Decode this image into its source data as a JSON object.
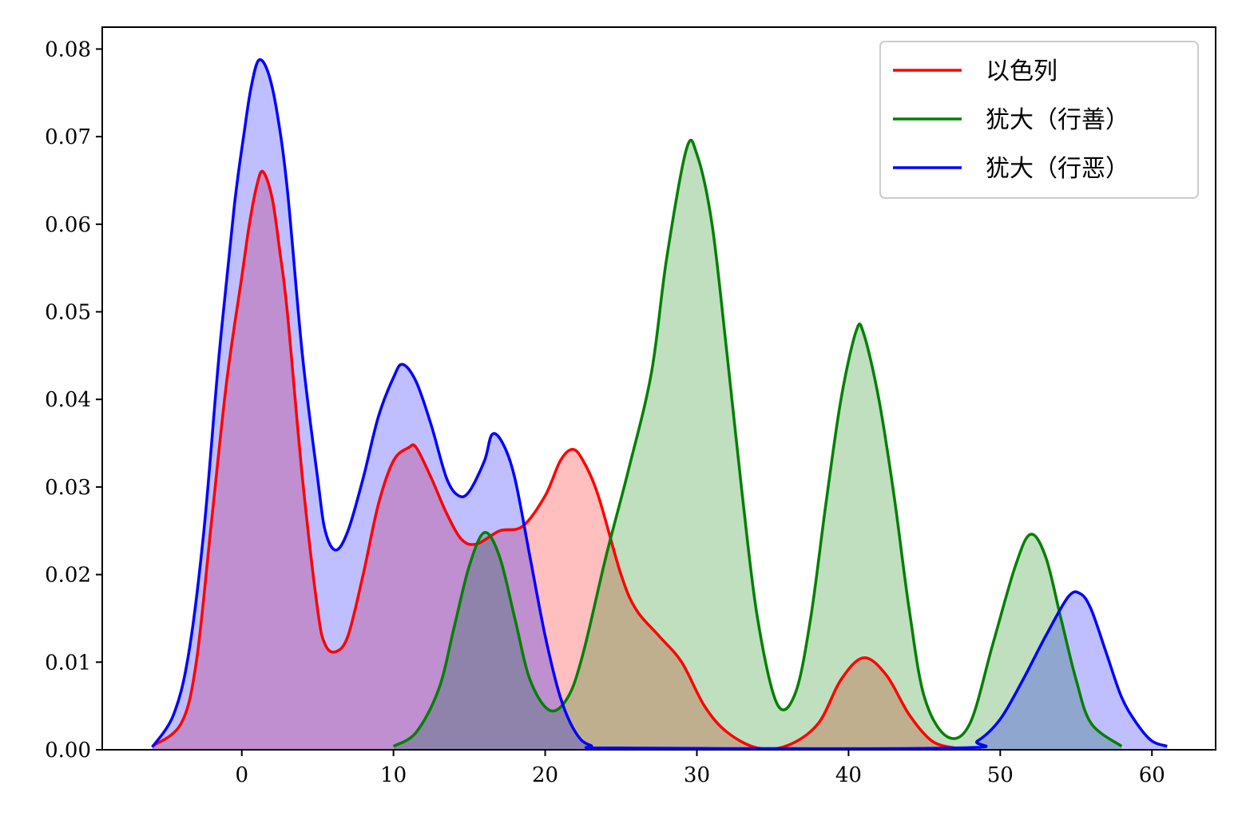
{
  "chart_data": {
    "type": "area",
    "title": "",
    "xlabel": "",
    "ylabel": "",
    "xlim": [
      -9.2,
      64.2
    ],
    "ylim": [
      0,
      0.0825
    ],
    "x_ticks": [
      0,
      10,
      20,
      30,
      40,
      50,
      60
    ],
    "y_ticks": [
      0.0,
      0.01,
      0.02,
      0.03,
      0.04,
      0.05,
      0.06,
      0.07,
      0.08
    ],
    "x_tick_labels": [
      "0",
      "10",
      "20",
      "30",
      "40",
      "50",
      "60"
    ],
    "y_tick_labels": [
      "0.00",
      "0.01",
      "0.02",
      "0.03",
      "0.04",
      "0.05",
      "0.06",
      "0.07",
      "0.08"
    ],
    "grid": false,
    "legend_position": "top-right",
    "series": [
      {
        "name": "以色列",
        "color": "#ff0000",
        "points": [
          [
            -5.9,
            0.0004
          ],
          [
            -4.0,
            0.003
          ],
          [
            -3.0,
            0.01
          ],
          [
            -2.0,
            0.026
          ],
          [
            -1.0,
            0.042
          ],
          [
            0.0,
            0.054
          ],
          [
            0.5,
            0.06
          ],
          [
            1.0,
            0.0645
          ],
          [
            1.4,
            0.066
          ],
          [
            2.0,
            0.063
          ],
          [
            2.5,
            0.057
          ],
          [
            3.0,
            0.05
          ],
          [
            4.0,
            0.031
          ],
          [
            5.0,
            0.016
          ],
          [
            5.5,
            0.012
          ],
          [
            6.2,
            0.0112
          ],
          [
            7.0,
            0.013
          ],
          [
            8.0,
            0.02
          ],
          [
            9.0,
            0.028
          ],
          [
            10.0,
            0.033
          ],
          [
            11.0,
            0.0345
          ],
          [
            11.5,
            0.0345
          ],
          [
            12.5,
            0.031
          ],
          [
            13.5,
            0.027
          ],
          [
            14.5,
            0.024
          ],
          [
            15.5,
            0.0235
          ],
          [
            17.0,
            0.025
          ],
          [
            18.5,
            0.0255
          ],
          [
            20.0,
            0.029
          ],
          [
            21.0,
            0.033
          ],
          [
            21.8,
            0.0343
          ],
          [
            22.5,
            0.033
          ],
          [
            23.5,
            0.029
          ],
          [
            25.0,
            0.02
          ],
          [
            26.0,
            0.016
          ],
          [
            27.5,
            0.013
          ],
          [
            29.0,
            0.01
          ],
          [
            30.5,
            0.005
          ],
          [
            32.0,
            0.002
          ],
          [
            34.0,
            0.0002
          ],
          [
            36.0,
            0.0005
          ],
          [
            38.0,
            0.003
          ],
          [
            39.5,
            0.008
          ],
          [
            41.0,
            0.0105
          ],
          [
            42.5,
            0.0085
          ],
          [
            44.0,
            0.004
          ],
          [
            45.5,
            0.001
          ],
          [
            47.0,
            0.0002
          ]
        ]
      },
      {
        "name": "犹大（行善）",
        "color": "#008000",
        "points": [
          [
            10.0,
            0.0004
          ],
          [
            11.5,
            0.002
          ],
          [
            13.0,
            0.007
          ],
          [
            14.0,
            0.014
          ],
          [
            15.0,
            0.021
          ],
          [
            16.0,
            0.0248
          ],
          [
            17.0,
            0.022
          ],
          [
            18.0,
            0.015
          ],
          [
            19.0,
            0.008
          ],
          [
            20.3,
            0.0045
          ],
          [
            21.5,
            0.006
          ],
          [
            22.5,
            0.011
          ],
          [
            24.0,
            0.022
          ],
          [
            25.5,
            0.032
          ],
          [
            27.0,
            0.043
          ],
          [
            28.0,
            0.056
          ],
          [
            29.3,
            0.0685
          ],
          [
            30.0,
            0.068
          ],
          [
            31.0,
            0.06
          ],
          [
            32.0,
            0.045
          ],
          [
            33.0,
            0.029
          ],
          [
            34.0,
            0.015
          ],
          [
            35.3,
            0.0052
          ],
          [
            36.5,
            0.0065
          ],
          [
            37.5,
            0.015
          ],
          [
            38.5,
            0.028
          ],
          [
            39.5,
            0.04
          ],
          [
            40.5,
            0.0478
          ],
          [
            41.0,
            0.0475
          ],
          [
            42.0,
            0.04
          ],
          [
            43.0,
            0.029
          ],
          [
            44.0,
            0.016
          ],
          [
            45.0,
            0.006
          ],
          [
            46.5,
            0.0015
          ],
          [
            48.0,
            0.003
          ],
          [
            49.5,
            0.012
          ],
          [
            51.0,
            0.021
          ],
          [
            52.0,
            0.0246
          ],
          [
            53.0,
            0.022
          ],
          [
            54.0,
            0.015
          ],
          [
            55.0,
            0.008
          ],
          [
            56.0,
            0.003
          ],
          [
            58.0,
            0.0004
          ]
        ]
      },
      {
        "name": "犹大（行恶）",
        "color": "#0000ff",
        "points": [
          [
            -5.9,
            0.0003
          ],
          [
            -4.5,
            0.004
          ],
          [
            -3.5,
            0.011
          ],
          [
            -2.5,
            0.025
          ],
          [
            -1.5,
            0.045
          ],
          [
            -0.5,
            0.062
          ],
          [
            0.2,
            0.071
          ],
          [
            0.6,
            0.0755
          ],
          [
            1.1,
            0.0787
          ],
          [
            1.7,
            0.0775
          ],
          [
            2.3,
            0.073
          ],
          [
            3.0,
            0.064
          ],
          [
            4.0,
            0.045
          ],
          [
            5.0,
            0.031
          ],
          [
            5.5,
            0.025
          ],
          [
            6.2,
            0.0228
          ],
          [
            7.0,
            0.025
          ],
          [
            8.0,
            0.031
          ],
          [
            9.0,
            0.038
          ],
          [
            10.0,
            0.0425
          ],
          [
            10.6,
            0.044
          ],
          [
            11.5,
            0.042
          ],
          [
            12.5,
            0.037
          ],
          [
            13.5,
            0.031
          ],
          [
            14.3,
            0.029
          ],
          [
            15.0,
            0.0295
          ],
          [
            16.0,
            0.033
          ],
          [
            16.5,
            0.036
          ],
          [
            17.2,
            0.035
          ],
          [
            18.0,
            0.031
          ],
          [
            19.0,
            0.022
          ],
          [
            20.0,
            0.013
          ],
          [
            21.0,
            0.006
          ],
          [
            22.0,
            0.002
          ],
          [
            23.0,
            0.0005
          ],
          [
            25.0,
            0.0002
          ],
          [
            47.0,
            0.0002
          ],
          [
            48.5,
            0.001
          ],
          [
            50.0,
            0.0035
          ],
          [
            51.5,
            0.008
          ],
          [
            53.0,
            0.013
          ],
          [
            54.5,
            0.0175
          ],
          [
            55.3,
            0.0178
          ],
          [
            56.0,
            0.016
          ],
          [
            57.0,
            0.011
          ],
          [
            58.0,
            0.006
          ],
          [
            59.0,
            0.003
          ],
          [
            60.0,
            0.001
          ],
          [
            61.0,
            0.0004
          ]
        ]
      }
    ]
  }
}
